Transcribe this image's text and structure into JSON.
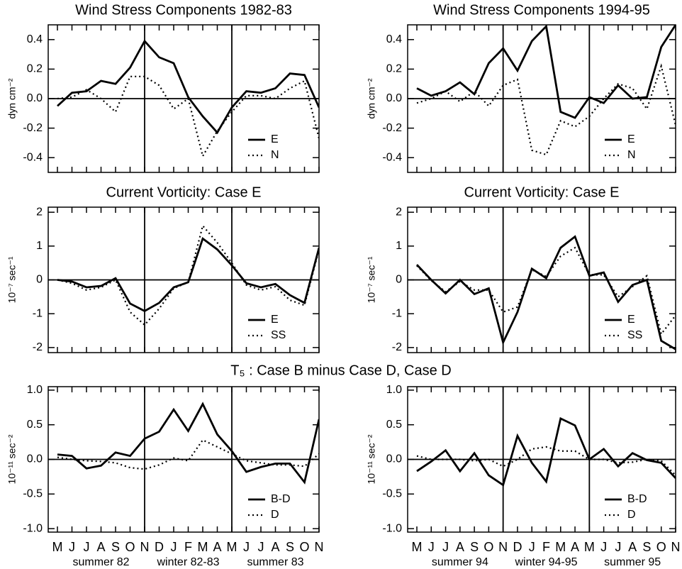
{
  "chart_data": [
    {
      "type": "line",
      "title": "Wind Stress Components 1982-83",
      "ylabel": "dyn cm⁻²",
      "ylim": [
        -0.5,
        0.5
      ],
      "yticks": [
        -0.4,
        -0.2,
        {
          "value": 0,
          "label": "0.0"
        },
        0.2,
        0.4
      ],
      "vlines": [
        6,
        12
      ],
      "series": [
        {
          "name": "E",
          "color": "#000000",
          "style": "solid",
          "values": [
            -0.05,
            0.04,
            0.05,
            0.12,
            0.1,
            0.21,
            0.39,
            0.28,
            0.24,
            0.01,
            -0.12,
            -0.23,
            -0.06,
            0.05,
            0.04,
            0.07,
            0.17,
            0.16,
            -0.06
          ]
        },
        {
          "name": "N",
          "color": "#000000",
          "style": "dotted",
          "values": [
            0.0,
            0.01,
            0.06,
            0.0,
            -0.09,
            0.15,
            0.15,
            0.09,
            -0.07,
            0.0,
            -0.39,
            -0.22,
            -0.09,
            0.02,
            0.02,
            0.0,
            0.07,
            0.12,
            -0.27
          ]
        }
      ]
    },
    {
      "type": "line",
      "title": "Wind Stress Components 1994-95",
      "ylabel": "dyn cm⁻²",
      "ylim": [
        -0.5,
        0.5
      ],
      "yticks": [
        -0.4,
        -0.2,
        {
          "value": 0,
          "label": "0.0"
        },
        0.2,
        0.4
      ],
      "vlines": [
        6,
        12
      ],
      "series": [
        {
          "name": "E",
          "color": "#000000",
          "style": "solid",
          "values": [
            0.07,
            0.02,
            0.05,
            0.11,
            0.03,
            0.24,
            0.34,
            0.19,
            0.39,
            0.49,
            -0.09,
            -0.13,
            0.01,
            -0.03,
            0.09,
            0.0,
            0.01,
            0.35,
            0.5
          ]
        },
        {
          "name": "N",
          "color": "#000000",
          "style": "dotted",
          "values": [
            -0.03,
            0.0,
            0.05,
            -0.02,
            0.05,
            -0.05,
            0.09,
            0.13,
            -0.35,
            -0.38,
            -0.15,
            -0.19,
            -0.12,
            0.0,
            0.1,
            0.07,
            -0.07,
            0.22,
            -0.18
          ]
        }
      ]
    },
    {
      "type": "line",
      "title": "Current Vorticity: Case E",
      "ylabel": "10⁻⁷ sec⁻¹",
      "ylim": [
        -2.15,
        2.15
      ],
      "yticks": [
        -2,
        -1,
        0,
        1,
        2
      ],
      "vlines": [
        6,
        12
      ],
      "series": [
        {
          "name": "E",
          "color": "#000000",
          "style": "solid",
          "values": [
            0.0,
            -0.05,
            -0.22,
            -0.18,
            0.05,
            -0.7,
            -0.92,
            -0.68,
            -0.22,
            -0.07,
            1.22,
            0.9,
            0.43,
            -0.1,
            -0.22,
            -0.12,
            -0.45,
            -0.68,
            0.95
          ]
        },
        {
          "name": "SS",
          "color": "#000000",
          "style": "dotted",
          "values": [
            0.0,
            -0.1,
            -0.3,
            -0.22,
            0.0,
            -0.95,
            -1.33,
            -0.85,
            -0.25,
            -0.07,
            1.6,
            1.1,
            0.5,
            -0.15,
            -0.3,
            -0.2,
            -0.6,
            -0.75,
            0.9
          ]
        }
      ]
    },
    {
      "type": "line",
      "title": "Current Vorticity: Case E",
      "ylabel": "10⁻⁷ sec⁻¹",
      "ylim": [
        -2.15,
        2.15
      ],
      "yticks": [
        -2,
        -1,
        0,
        1,
        2
      ],
      "vlines": [
        6,
        12
      ],
      "series": [
        {
          "name": "E",
          "color": "#000000",
          "style": "solid",
          "values": [
            0.45,
            0.0,
            -0.4,
            0.0,
            -0.42,
            -0.25,
            -1.85,
            -0.95,
            0.33,
            0.05,
            0.95,
            1.28,
            0.12,
            0.22,
            -0.65,
            -0.15,
            0.0,
            -1.8,
            -2.05
          ]
        },
        {
          "name": "SS",
          "color": "#000000",
          "style": "dotted",
          "values": [
            0.42,
            -0.02,
            -0.35,
            -0.05,
            -0.3,
            -0.3,
            -0.95,
            -0.8,
            0.3,
            0.1,
            0.7,
            0.95,
            0.15,
            0.15,
            -0.5,
            -0.2,
            0.12,
            -1.6,
            -1.05
          ]
        }
      ]
    },
    {
      "type": "line",
      "title": "T₅ : Case B minus Case D, Case D",
      "ylabel": "10⁻¹¹ sec⁻²",
      "categories": [
        "M",
        "J",
        "J",
        "A",
        "S",
        "O",
        "N",
        "D",
        "J",
        "F",
        "M",
        "A",
        "M",
        "J",
        "J",
        "A",
        "S",
        "O",
        "N"
      ],
      "periods": [
        "summer 82",
        "winter 82-83",
        "summer 83"
      ],
      "ylim": [
        -1.05,
        1.05
      ],
      "yticks": [
        {
          "value": -1,
          "label": "-1.0"
        },
        -0.5,
        {
          "value": 0,
          "label": "0.0"
        },
        0.5,
        {
          "value": 1,
          "label": "1.0"
        }
      ],
      "vlines": [
        6,
        12
      ],
      "series": [
        {
          "name": "B-D",
          "color": "#000000",
          "style": "solid",
          "values": [
            0.07,
            0.05,
            -0.13,
            -0.09,
            0.1,
            0.05,
            0.3,
            0.4,
            0.72,
            0.41,
            0.8,
            0.36,
            0.12,
            -0.18,
            -0.11,
            -0.06,
            -0.06,
            -0.33,
            0.58
          ]
        },
        {
          "name": "D",
          "color": "#000000",
          "style": "dotted",
          "values": [
            0.03,
            0.0,
            -0.02,
            -0.03,
            -0.05,
            -0.12,
            -0.14,
            -0.08,
            0.02,
            -0.02,
            0.28,
            0.18,
            0.08,
            -0.02,
            -0.05,
            -0.08,
            -0.08,
            -0.1,
            0.08
          ]
        }
      ]
    },
    {
      "type": "line",
      "ylabel": "10⁻¹¹ sec⁻²",
      "categories": [
        "M",
        "J",
        "J",
        "A",
        "S",
        "O",
        "N",
        "D",
        "J",
        "F",
        "M",
        "A",
        "M",
        "J",
        "J",
        "A",
        "S",
        "O",
        "N"
      ],
      "periods": [
        "summer 94",
        "winter 94-95",
        "summer 95"
      ],
      "ylim": [
        -1.05,
        1.05
      ],
      "yticks": [
        {
          "value": -1,
          "label": "-1.0"
        },
        -0.5,
        {
          "value": 0,
          "label": "0.0"
        },
        0.5,
        {
          "value": 1,
          "label": "1.0"
        }
      ],
      "vlines": [
        6,
        12
      ],
      "series": [
        {
          "name": "B-D",
          "color": "#000000",
          "style": "solid",
          "values": [
            -0.17,
            -0.03,
            0.13,
            -0.17,
            0.09,
            -0.23,
            -0.37,
            0.34,
            -0.05,
            -0.32,
            0.59,
            0.49,
            0.0,
            0.15,
            -0.1,
            0.09,
            -0.01,
            -0.05,
            -0.27
          ]
        },
        {
          "name": "D",
          "color": "#000000",
          "style": "dotted",
          "values": [
            0.05,
            0.0,
            0.0,
            0.0,
            -0.02,
            0.0,
            -0.1,
            0.0,
            0.15,
            0.18,
            0.12,
            0.12,
            0.0,
            0.0,
            -0.05,
            -0.04,
            0.0,
            -0.02,
            -0.23
          ]
        }
      ]
    }
  ]
}
